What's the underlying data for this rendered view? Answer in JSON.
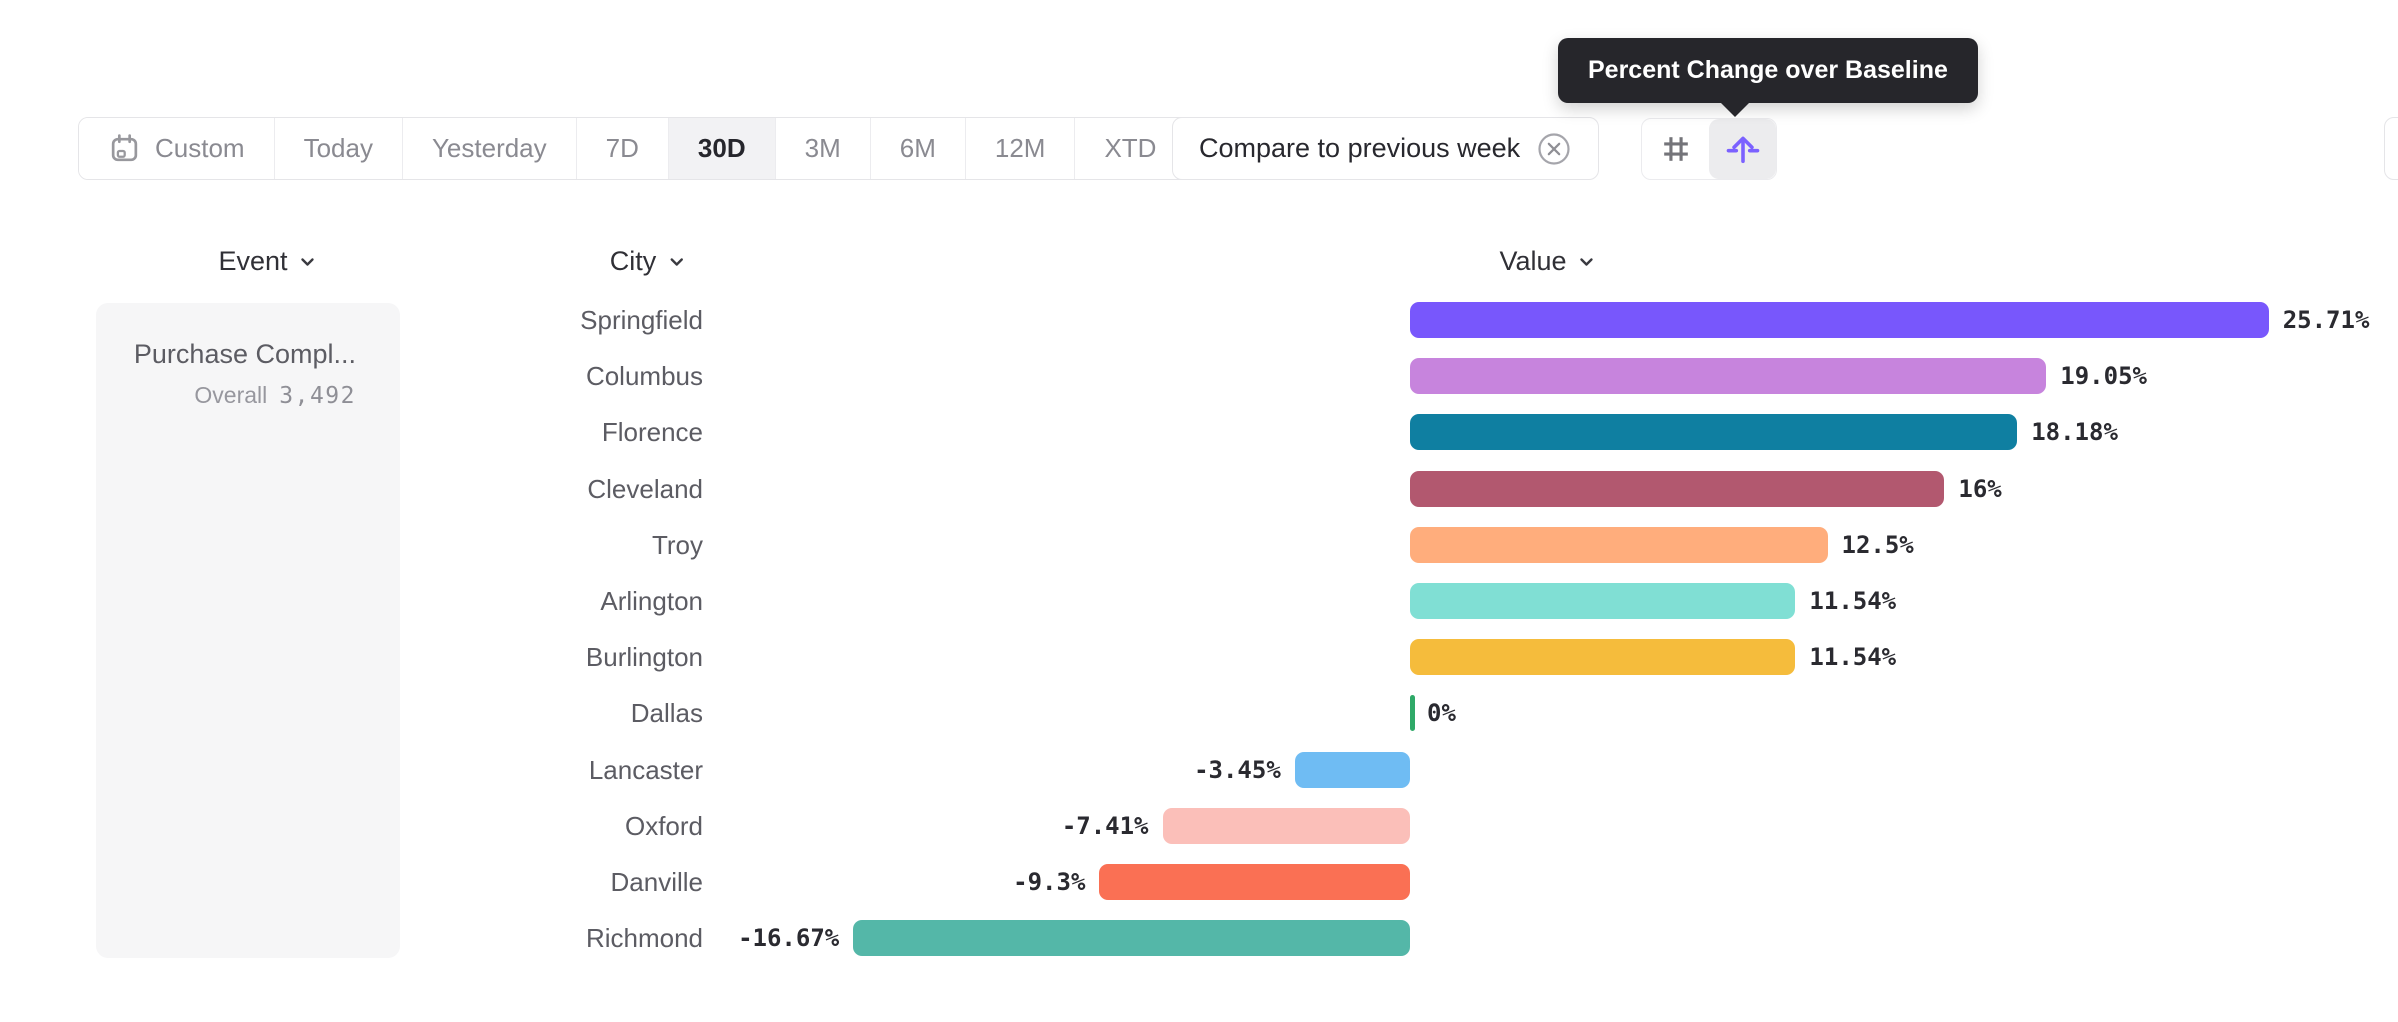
{
  "toolbar": {
    "items": [
      {
        "label": "Custom",
        "icon": "calendar-icon"
      },
      {
        "label": "Today"
      },
      {
        "label": "Yesterday"
      },
      {
        "label": "7D"
      },
      {
        "label": "30D",
        "selected": true
      },
      {
        "label": "3M"
      },
      {
        "label": "6M"
      },
      {
        "label": "12M"
      },
      {
        "label": "XTD",
        "icon": "chevron-down-icon"
      }
    ],
    "compare_label": "Compare to previous week",
    "compare_remove_icon": "circle-x-icon",
    "view_toggle": {
      "left_icon": "hash-grid-icon",
      "right_icon": "arrow-up-from-baseline-icon",
      "selected": "right",
      "accent_color": "#7B61FF"
    }
  },
  "tooltip": {
    "text": "Percent Change over Baseline",
    "background": "#26262B"
  },
  "table": {
    "event_header": "Event",
    "city_header": "City",
    "value_header": "Value",
    "event": {
      "name": "Purchase Compl...",
      "overall_label": "Overall",
      "overall_value": "3,492"
    }
  },
  "chart_data": {
    "type": "bar",
    "orientation": "horizontal",
    "unit": "percent change over baseline",
    "baseline": 0,
    "categories": [
      "Springfield",
      "Columbus",
      "Florence",
      "Cleveland",
      "Troy",
      "Arlington",
      "Burlington",
      "Dallas",
      "Lancaster",
      "Oxford",
      "Danville",
      "Richmond"
    ],
    "values": [
      25.71,
      19.05,
      18.18,
      16,
      12.5,
      11.54,
      11.54,
      0,
      -3.45,
      -7.41,
      -9.3,
      -16.67
    ],
    "labels": [
      "25.71%",
      "19.05%",
      "18.18%",
      "16%",
      "12.5%",
      "11.54%",
      "11.54%",
      "0%",
      "-3.45%",
      "-7.41%",
      "-9.3%",
      "-16.67%"
    ],
    "colors": [
      "#7857FC",
      "#C784DD",
      "#0F7FA1",
      "#B2586F",
      "#FFAD7C",
      "#80DFD4",
      "#F5BC3C",
      "#2FA968",
      "#6FBCF3",
      "#FBBFB9",
      "#FA7054",
      "#54B7A8"
    ],
    "xlim": [
      -20,
      30
    ],
    "grid": false,
    "legend": false
  }
}
